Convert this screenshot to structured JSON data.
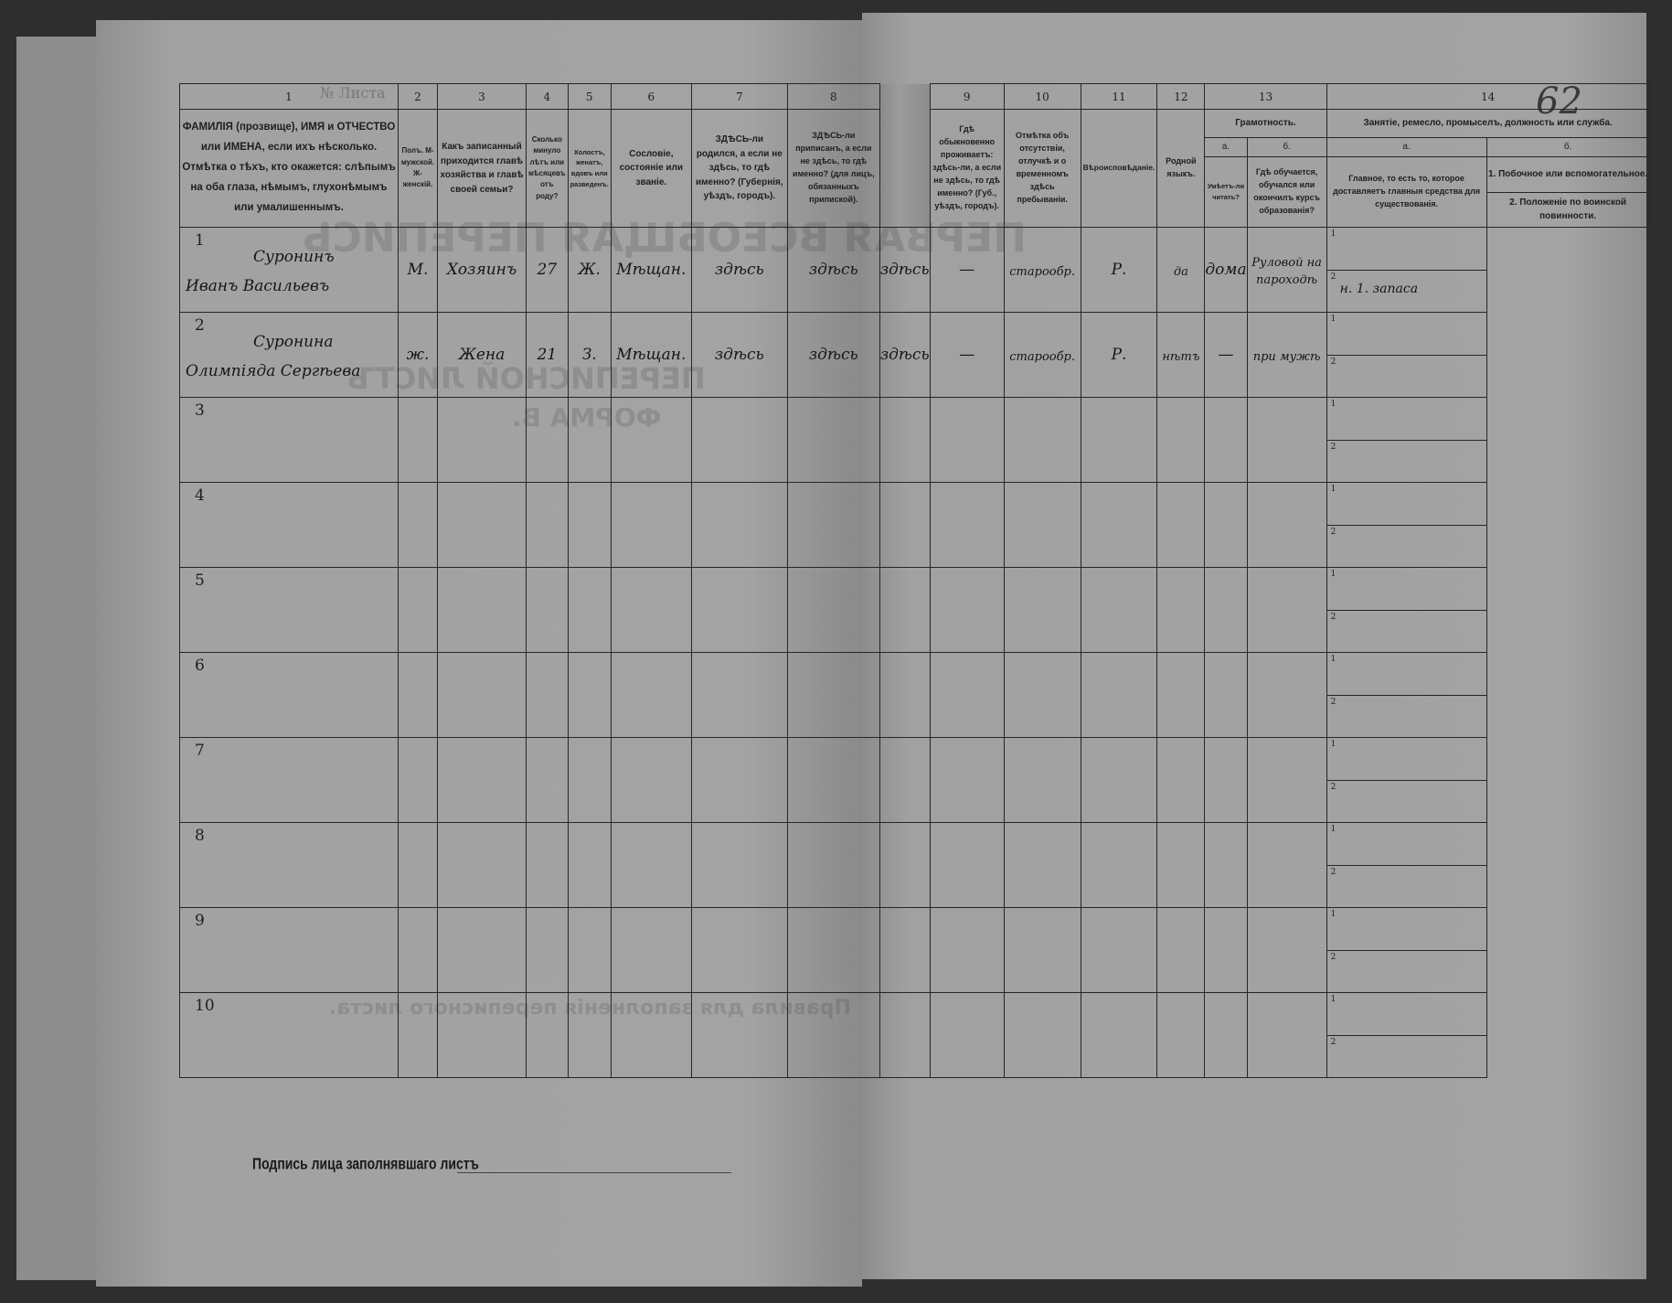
{
  "document": {
    "sheet_label": "№ Листа",
    "sheet_number_handwritten": "62",
    "signature_label": "Подпись лица заполнявшаго листъ",
    "bleed_through": [
      "ПЕРВАЯ ВСЕОБЩАЯ ПЕРЕПИСЬ",
      "ПЕРЕПИСНОЙ ЛИСТЪ",
      "ФОРМА В.",
      "Правила для заполненія переписного листа."
    ]
  },
  "columns": {
    "numbers": [
      "1",
      "2",
      "3",
      "4",
      "5",
      "6",
      "7",
      "8",
      "9",
      "10",
      "11",
      "12",
      "13",
      "14"
    ],
    "c1": "ФАМИЛІЯ (прозвище), ИМЯ и ОТЧЕСТВО или ИМЕНА, если ихъ нѣсколько. Отмѣтка о тѣхъ, кто окажется: слѣпымъ на оба глаза, нѣмымъ, глухонѣмымъ или умалишеннымъ.",
    "c2": "Полъ. М-мужской. Ж-женскій.",
    "c3": "Какъ записанный приходится главѣ хозяйства и главѣ своей семьи?",
    "c4": "Сколько минуло лѣтъ или мѣсяцевъ отъ роду?",
    "c5": "Холостъ, женатъ, вдовъ или разведенъ.",
    "c6": "Сословіе, состояніе или званіе.",
    "c7": "ЗДѢСЬ-ли родился, а если не здѣсь, то гдѣ именно? (Губернія, уѣздъ, городъ).",
    "c8": "ЗДѢСЬ-ли приписанъ, а если не здѣсь, то гдѣ именно? (для лицъ, обязанныхъ припиской).",
    "c9": "Гдѣ обыкновенно проживаетъ: здѣсь-ли, а если не здѣсь, то гдѣ именно? (Губ., уѣздъ, городъ).",
    "c10": "Отмѣтка объ отсутствіи, отлучкѣ и о временномъ здѣсь пребываніи.",
    "c11": "Вѣроисповѣданіе.",
    "c12": "Родной языкъ.",
    "c13_group": "Грамотность.",
    "c13a_letter": "а.",
    "c13a": "Умѣетъ-ли читать?",
    "c13b_letter": "б.",
    "c13b": "Гдѣ обучается, обучался или окончилъ курсъ образованія?",
    "c14_group": "Занятіе, ремесло, промыселъ, должность или служба.",
    "c14a_letter": "а.",
    "c14a": "Главное, то есть то, которое доставляетъ главныя средства для существованія.",
    "c14b_letter": "б.",
    "c14b_1": "1. Побочное или вспомогательное.",
    "c14b_2": "2. Положеніе по воинской повинности."
  },
  "rows": [
    {
      "n": "1",
      "surname": "Суронинъ",
      "given": "Иванъ Васильевъ",
      "sex": "М.",
      "relation": "Хозяинъ",
      "age": "27",
      "marital": "Ж.",
      "estate": "Мѣщан.",
      "born": "здѣсь",
      "registered": "здѣсь",
      "resides": "здѣсь",
      "absence": "—",
      "religion": "старообр.",
      "language": "Р.",
      "reads": "да",
      "education": "дома",
      "occupation": "Руловой на пароходѣ",
      "sub1": "",
      "sub2": "н. 1. запаса",
      "sub_n1": "1",
      "sub_n2": "2"
    },
    {
      "n": "2",
      "surname": "Суронина",
      "given": "Олимпіяда Сергѣева",
      "sex": "ж.",
      "relation": "Жена",
      "age": "21",
      "marital": "З.",
      "estate": "Мѣщан.",
      "born": "здѣсь",
      "registered": "здѣсь",
      "resides": "здѣсь",
      "absence": "—",
      "religion": "старообр.",
      "language": "Р.",
      "reads": "нѣтъ",
      "education": "—",
      "occupation": "при мужѣ",
      "sub1": "",
      "sub2": "",
      "sub_n1": "1",
      "sub_n2": "2"
    },
    {
      "n": "3",
      "sub_n1": "1",
      "sub_n2": "2"
    },
    {
      "n": "4",
      "sub_n1": "1",
      "sub_n2": "2"
    },
    {
      "n": "5",
      "sub_n1": "1",
      "sub_n2": "2"
    },
    {
      "n": "6",
      "sub_n1": "1",
      "sub_n2": "2"
    },
    {
      "n": "7",
      "sub_n1": "1",
      "sub_n2": "2"
    },
    {
      "n": "8",
      "sub_n1": "1",
      "sub_n2": "2"
    },
    {
      "n": "9",
      "sub_n1": "1",
      "sub_n2": "2"
    },
    {
      "n": "10",
      "sub_n1": "1",
      "sub_n2": "2"
    }
  ]
}
